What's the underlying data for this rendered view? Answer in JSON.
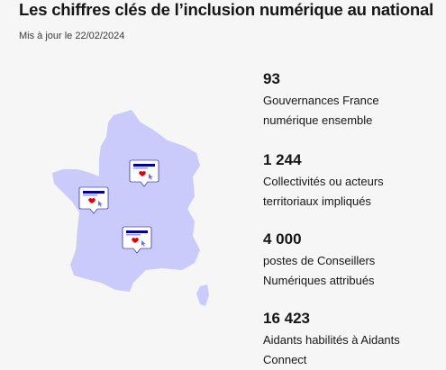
{
  "header": {
    "title": "Les chiffres clés de l’inclusion numérique au national",
    "updated": "Mis à jour le 22/02/2024"
  },
  "stats": [
    {
      "value": "93",
      "label": "Gouvernances France numérique ensemble"
    },
    {
      "value": "1 244",
      "label": "Collectivités ou acteurs territoriaux impliqués"
    },
    {
      "value": "4 000",
      "label": "postes de Conseillers Numériques attribués"
    },
    {
      "value": "16 423",
      "label": "Aidants habilités à Aidants Connect"
    }
  ],
  "colors": {
    "map_fill": "#cacafb",
    "card_navy": "#000091",
    "card_red": "#e1000f",
    "text": "#161616",
    "background": "#f6f6f6"
  },
  "icons": [
    "france-map-illustration",
    "heart-icon",
    "cursor-icon"
  ]
}
